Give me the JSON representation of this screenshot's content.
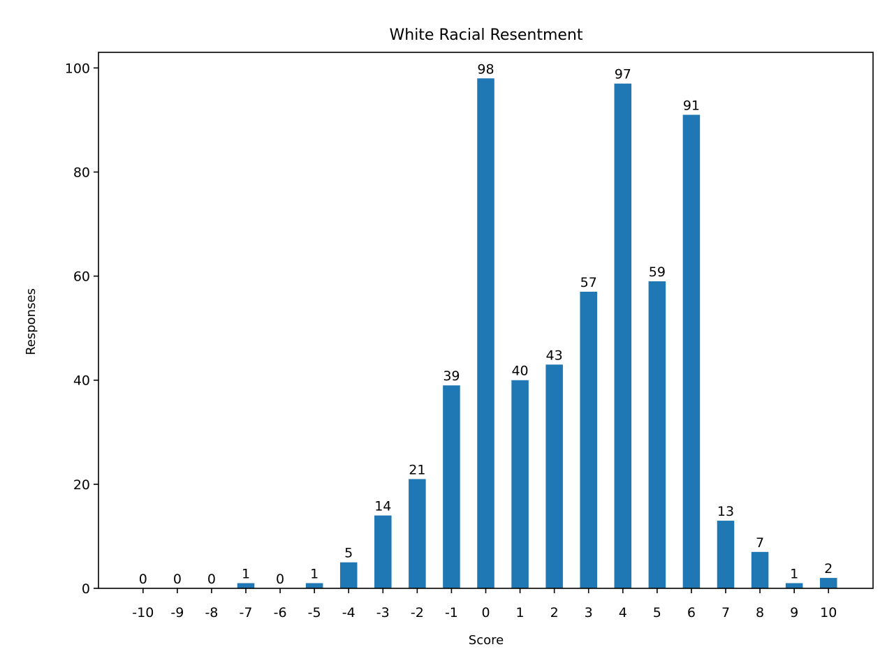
{
  "chart_data": {
    "type": "bar",
    "title": "White Racial Resentment",
    "xlabel": "Score",
    "ylabel": "Responses",
    "categories": [
      "-10",
      "-9",
      "-8",
      "-7",
      "-6",
      "-5",
      "-4",
      "-3",
      "-2",
      "-1",
      "0",
      "1",
      "2",
      "3",
      "4",
      "5",
      "6",
      "7",
      "8",
      "9",
      "10"
    ],
    "values": [
      0,
      0,
      0,
      1,
      0,
      1,
      5,
      14,
      21,
      39,
      98,
      40,
      43,
      57,
      97,
      59,
      91,
      13,
      7,
      1,
      2
    ],
    "yticks": [
      "0",
      "20",
      "40",
      "60",
      "80",
      "100"
    ],
    "ylim": [
      0,
      103
    ],
    "grid": false,
    "data_labels": true,
    "colors": {
      "bar": "#1f77b4",
      "axis": "#000000",
      "background": "#ffffff"
    }
  }
}
